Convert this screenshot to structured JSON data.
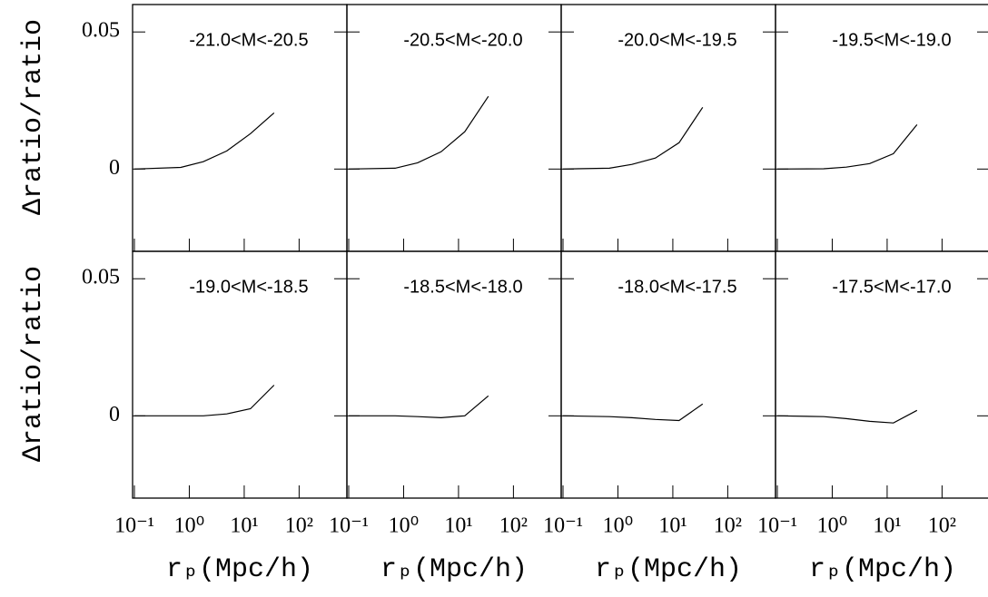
{
  "chart_data": [
    {
      "type": "line",
      "title": "-21.0<M<-20.5",
      "log_x": true,
      "xlim": [
        0.1,
        800
      ],
      "ylim": [
        -0.03,
        0.06
      ],
      "xticks": [
        0.1,
        1,
        10,
        100
      ],
      "yticks": [
        0,
        0.05
      ],
      "ylabel": "Δratio/ratio",
      "x": [
        0.1,
        0.7,
        1.8,
        4.8,
        13,
        35
      ],
      "values": [
        0,
        0.0006,
        0.0027,
        0.0066,
        0.0129,
        0.0205
      ],
      "color": "#000000"
    },
    {
      "type": "line",
      "title": "-20.5<M<-20.0",
      "log_x": true,
      "xlim": [
        0.1,
        800
      ],
      "ylim": [
        -0.03,
        0.06
      ],
      "xticks": [
        0.1,
        1,
        10,
        100
      ],
      "yticks": [
        0,
        0.05
      ],
      "x": [
        0.1,
        0.7,
        1.8,
        4.8,
        13,
        35
      ],
      "values": [
        0,
        0.0003,
        0.0023,
        0.0063,
        0.0136,
        0.0265
      ],
      "color": "#000000"
    },
    {
      "type": "line",
      "title": "-20.0<M<-19.5",
      "log_x": true,
      "xlim": [
        0.1,
        800
      ],
      "ylim": [
        -0.03,
        0.06
      ],
      "xticks": [
        0.1,
        1,
        10,
        100
      ],
      "yticks": [
        0,
        0.05
      ],
      "x": [
        0.1,
        0.7,
        1.8,
        4.8,
        13,
        35
      ],
      "values": [
        0,
        0.0003,
        0.0017,
        0.004,
        0.0096,
        0.0225
      ],
      "color": "#000000"
    },
    {
      "type": "line",
      "title": "-19.5<M<-19.0",
      "log_x": true,
      "xlim": [
        0.1,
        800
      ],
      "ylim": [
        -0.03,
        0.06
      ],
      "xticks": [
        0.1,
        1,
        10,
        100
      ],
      "yticks": [
        0,
        0.05
      ],
      "x": [
        0.1,
        0.7,
        1.8,
        4.8,
        13,
        35
      ],
      "values": [
        0,
        0.0001,
        0.0007,
        0.002,
        0.0056,
        0.0162
      ],
      "color": "#000000"
    },
    {
      "type": "line",
      "title": "-19.0<M<-18.5",
      "log_x": true,
      "xlim": [
        0.1,
        800
      ],
      "ylim": [
        -0.03,
        0.06
      ],
      "xticks": [
        {
          "value": 0.1,
          "label": "10⁻¹"
        },
        {
          "value": 1,
          "label": "10⁰"
        },
        {
          "value": 10,
          "label": "10¹"
        },
        {
          "value": 100,
          "label": "10²"
        }
      ],
      "yticks": [
        0,
        0.05
      ],
      "ylabel": "Δratio/ratio",
      "xlabel": "rₚ(Mpc/h)",
      "x": [
        0.1,
        0.7,
        1.8,
        4.8,
        13,
        35
      ],
      "values": [
        0,
        0,
        0,
        0.0007,
        0.0026,
        0.0112
      ],
      "color": "#000000"
    },
    {
      "type": "line",
      "title": "-18.5<M<-18.0",
      "log_x": true,
      "xlim": [
        0.1,
        800
      ],
      "ylim": [
        -0.03,
        0.06
      ],
      "xticks": [
        {
          "value": 0.1,
          "label": "10⁻¹"
        },
        {
          "value": 1,
          "label": "10⁰"
        },
        {
          "value": 10,
          "label": "10¹"
        },
        {
          "value": 100,
          "label": "10²"
        }
      ],
      "yticks": [
        0,
        0.05
      ],
      "xlabel": "rₚ(Mpc/h)",
      "x": [
        0.1,
        0.7,
        1.8,
        4.8,
        13,
        35
      ],
      "values": [
        0,
        0,
        -0.0003,
        -0.0007,
        0,
        0.0073
      ],
      "color": "#000000"
    },
    {
      "type": "line",
      "title": "-18.0<M<-17.5",
      "log_x": true,
      "xlim": [
        0.1,
        800
      ],
      "ylim": [
        -0.03,
        0.06
      ],
      "xticks": [
        {
          "value": 0.1,
          "label": "10⁻¹"
        },
        {
          "value": 1,
          "label": "10⁰"
        },
        {
          "value": 10,
          "label": "10¹"
        },
        {
          "value": 100,
          "label": "10²"
        }
      ],
      "yticks": [
        0,
        0.05
      ],
      "xlabel": "rₚ(Mpc/h)",
      "x": [
        0.1,
        0.7,
        1.8,
        4.8,
        13,
        35
      ],
      "values": [
        0,
        -0.0003,
        -0.0007,
        -0.0013,
        -0.0017,
        0.0043
      ],
      "color": "#000000"
    },
    {
      "type": "line",
      "title": "-17.5<M<-17.0",
      "log_x": true,
      "xlim": [
        0.1,
        800
      ],
      "ylim": [
        -0.03,
        0.06
      ],
      "xticks": [
        {
          "value": 0.1,
          "label": "10⁻¹"
        },
        {
          "value": 1,
          "label": "10⁰"
        },
        {
          "value": 10,
          "label": "10¹"
        },
        {
          "value": 100,
          "label": "10²"
        }
      ],
      "yticks": [
        0,
        0.05
      ],
      "xlabel": "rₚ(Mpc/h)",
      "x": [
        0.1,
        0.7,
        1.8,
        4.8,
        13,
        35
      ],
      "values": [
        0,
        -0.0003,
        -0.001,
        -0.002,
        -0.0026,
        0.002
      ],
      "color": "#000000"
    }
  ]
}
